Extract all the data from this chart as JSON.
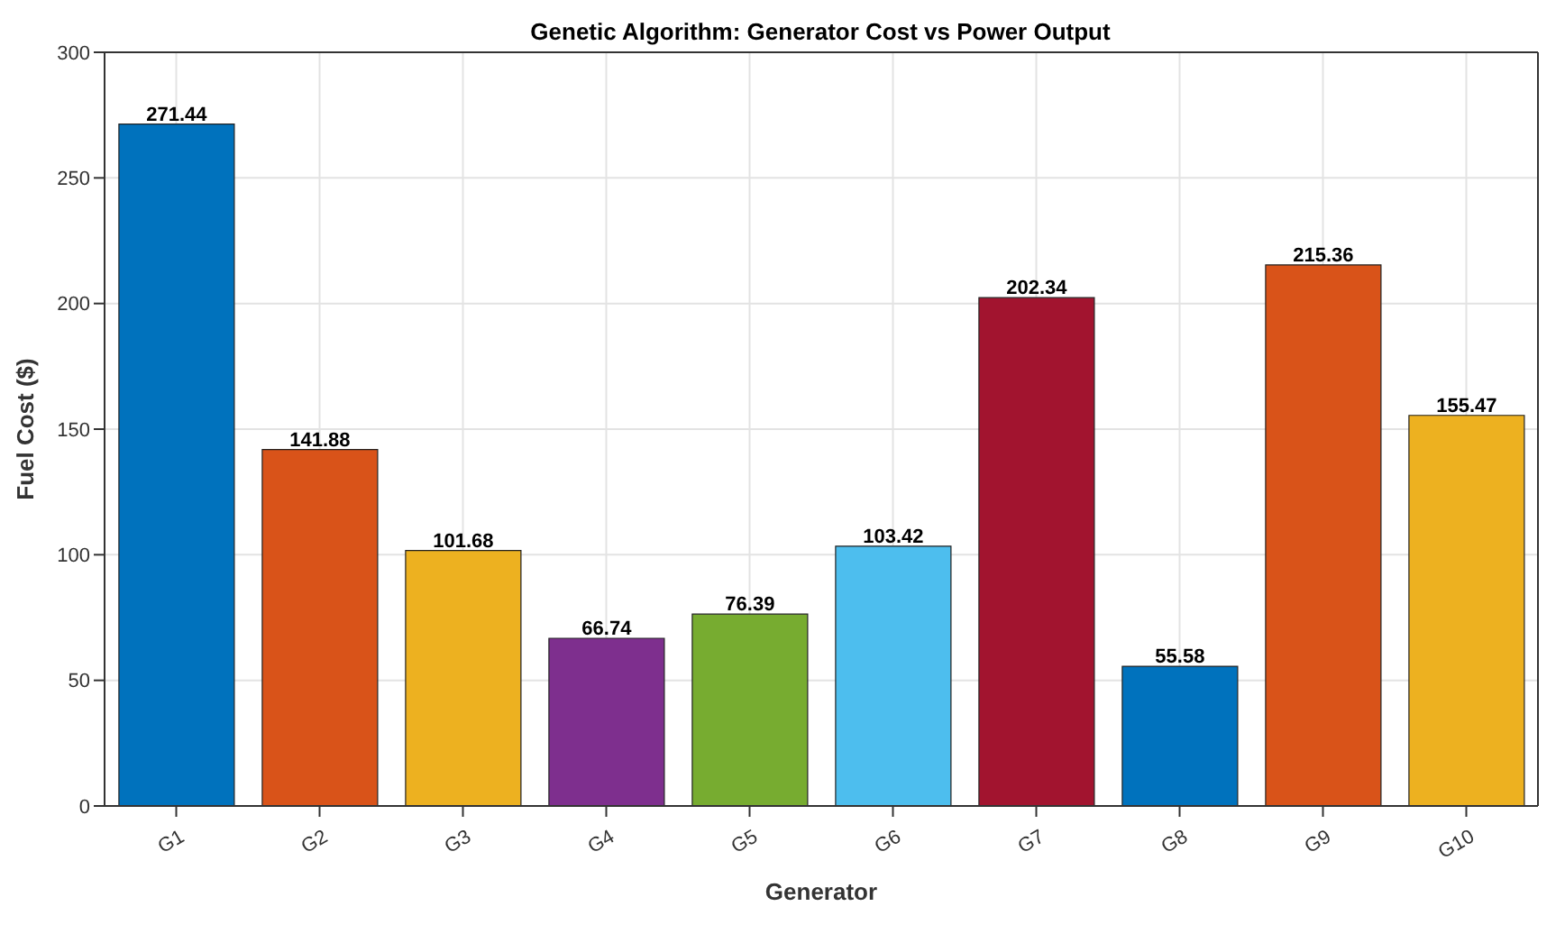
{
  "chart_data": {
    "type": "bar",
    "title": "Genetic Algorithm: Generator Cost vs Power Output",
    "xlabel": "Generator",
    "ylabel": "Fuel Cost ($)",
    "categories": [
      "G1",
      "G2",
      "G3",
      "G4",
      "G5",
      "G6",
      "G7",
      "G8",
      "G9",
      "G10"
    ],
    "values": [
      271.44,
      141.88,
      101.68,
      66.74,
      76.39,
      103.42,
      202.34,
      55.58,
      215.36,
      155.47
    ],
    "colors": [
      "#0072bd",
      "#d95319",
      "#edb120",
      "#7e2f8e",
      "#77ac30",
      "#4dbeee",
      "#a2142f",
      "#0072bd",
      "#d95319",
      "#edb120"
    ],
    "ylim": [
      0,
      300
    ],
    "yticks": [
      0,
      50,
      100,
      150,
      200,
      250,
      300
    ],
    "grid": true,
    "data_labels": true
  }
}
